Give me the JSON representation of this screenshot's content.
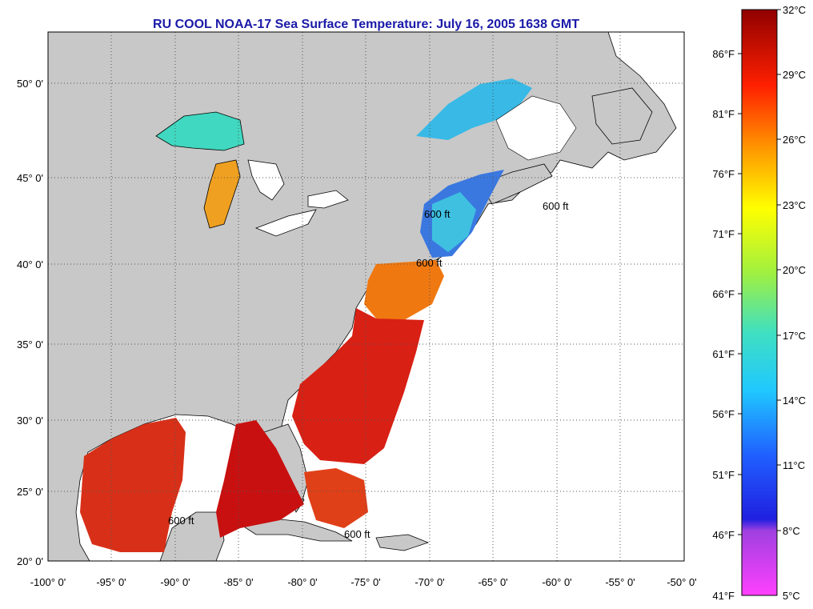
{
  "title": "RU COOL  NOAA-17  Sea Surface Temperature:  July 16, 2005 1638 GMT",
  "lon_labels": [
    "-100° 0'",
    "-95° 0'",
    "-90° 0'",
    "-85° 0'",
    "-80° 0'",
    "-75° 0'",
    "-70° 0'",
    "-65° 0'",
    "-60° 0'",
    "-55° 0'",
    "-50° 0'"
  ],
  "lat_labels": [
    "50° 0'",
    "45° 0'",
    "40° 0'",
    "35° 0'",
    "30° 0'",
    "25° 0'",
    "20° 0'"
  ],
  "contour_label": "600 ft",
  "colorbar": {
    "celsius": [
      "32°C",
      "29°C",
      "26°C",
      "23°C",
      "20°C",
      "17°C",
      "14°C",
      "11°C",
      "8°C",
      "5°C"
    ],
    "fahrenheit": [
      "86°F",
      "81°F",
      "76°F",
      "71°F",
      "66°F",
      "61°F",
      "56°F",
      "51°F",
      "46°F",
      "41°F"
    ]
  },
  "colors": {
    "land": "#c8c8c8",
    "ocean_no_data": "#ffffff",
    "title": "#1a1aa8",
    "warm": "#e02818",
    "hot": "#c81010",
    "orange": "#f07810",
    "cold": "#3070e0",
    "cyan": "#40d8e0"
  }
}
